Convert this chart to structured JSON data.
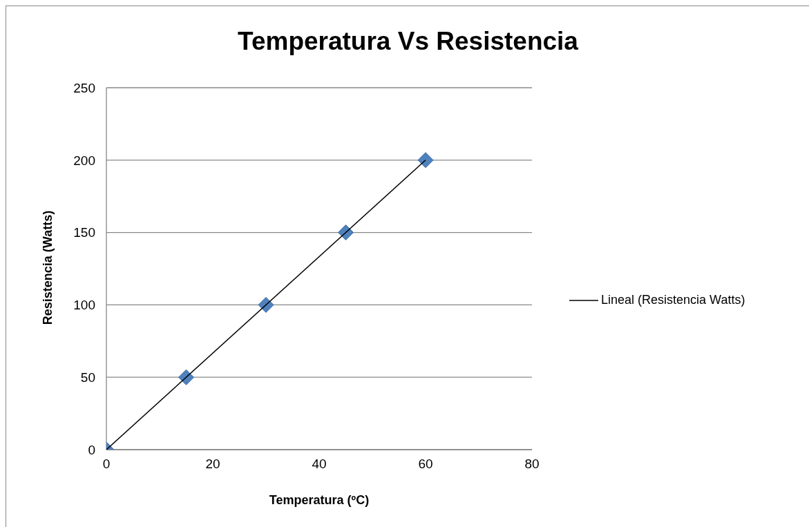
{
  "chart_data": {
    "type": "scatter",
    "title": "Temperatura Vs Resistencia",
    "xlabel": "Temperatura (ºC)",
    "ylabel": "Resistencia (Watts)",
    "xlim": [
      0,
      80
    ],
    "xticks": [
      0,
      20,
      40,
      60,
      80
    ],
    "ylim": [
      0,
      250
    ],
    "yticks": [
      0,
      50,
      100,
      150,
      200,
      250
    ],
    "grid": "y",
    "legend": "right",
    "series": [
      {
        "type": "scatter",
        "color": "#4f81bd",
        "marker": "diamond",
        "x": [
          0,
          15,
          30,
          45,
          60
        ],
        "values": [
          0,
          50,
          100,
          150,
          200
        ]
      },
      {
        "type": "line",
        "name": "Lineal (Resistencia Watts)",
        "color": "#000000",
        "marker": "none",
        "line_style": "solid",
        "x": [
          0,
          60
        ],
        "values": [
          0,
          200
        ]
      }
    ]
  }
}
